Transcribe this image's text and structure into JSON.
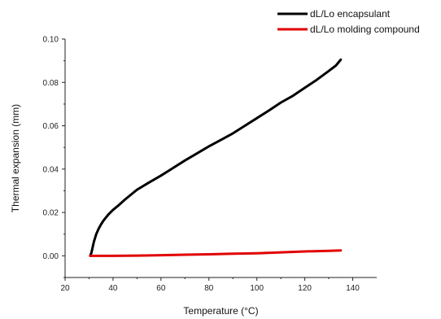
{
  "chart_data": {
    "type": "line",
    "title": "",
    "xlabel": "Temperature (°C)",
    "ylabel": "Thermal expansion (mm)",
    "xlim": [
      20,
      150
    ],
    "ylim": [
      -0.01,
      0.1
    ],
    "x_ticks": [
      20,
      40,
      60,
      80,
      100,
      120,
      140
    ],
    "y_ticks": [
      0.0,
      0.02,
      0.04,
      0.06,
      0.08,
      0.1
    ],
    "x_tick_labels": [
      "20",
      "40",
      "60",
      "80",
      "100",
      "120",
      "140"
    ],
    "y_tick_labels": [
      "0.00",
      "0.02",
      "0.04",
      "0.06",
      "0.08",
      "0.10"
    ],
    "grid": false,
    "legend_position": "top-right",
    "series": [
      {
        "name": "dL/Lo encapsulant",
        "color": "#000000",
        "x": [
          30.5,
          31,
          31.5,
          32,
          33,
          34,
          35,
          36,
          38,
          40,
          42,
          45,
          50,
          55,
          60,
          65,
          70,
          75,
          80,
          85,
          90,
          95,
          100,
          105,
          110,
          115,
          120,
          125,
          130,
          133,
          135
        ],
        "y": [
          0.0,
          0.0015,
          0.004,
          0.0065,
          0.01,
          0.0125,
          0.0145,
          0.0162,
          0.019,
          0.0212,
          0.023,
          0.026,
          0.0305,
          0.0338,
          0.037,
          0.0405,
          0.044,
          0.0472,
          0.0505,
          0.0535,
          0.0565,
          0.06,
          0.0635,
          0.067,
          0.0707,
          0.0738,
          0.0775,
          0.0812,
          0.0853,
          0.0878,
          0.0905
        ]
      },
      {
        "name": "dL/Lo molding compound",
        "color": "#e10000",
        "x": [
          30.5,
          40,
          50,
          60,
          70,
          80,
          90,
          100,
          110,
          120,
          130,
          135
        ],
        "y": [
          0.0,
          0.0,
          0.0001,
          0.0003,
          0.0005,
          0.0007,
          0.001,
          0.0012,
          0.0016,
          0.002,
          0.0023,
          0.0025
        ]
      }
    ]
  }
}
